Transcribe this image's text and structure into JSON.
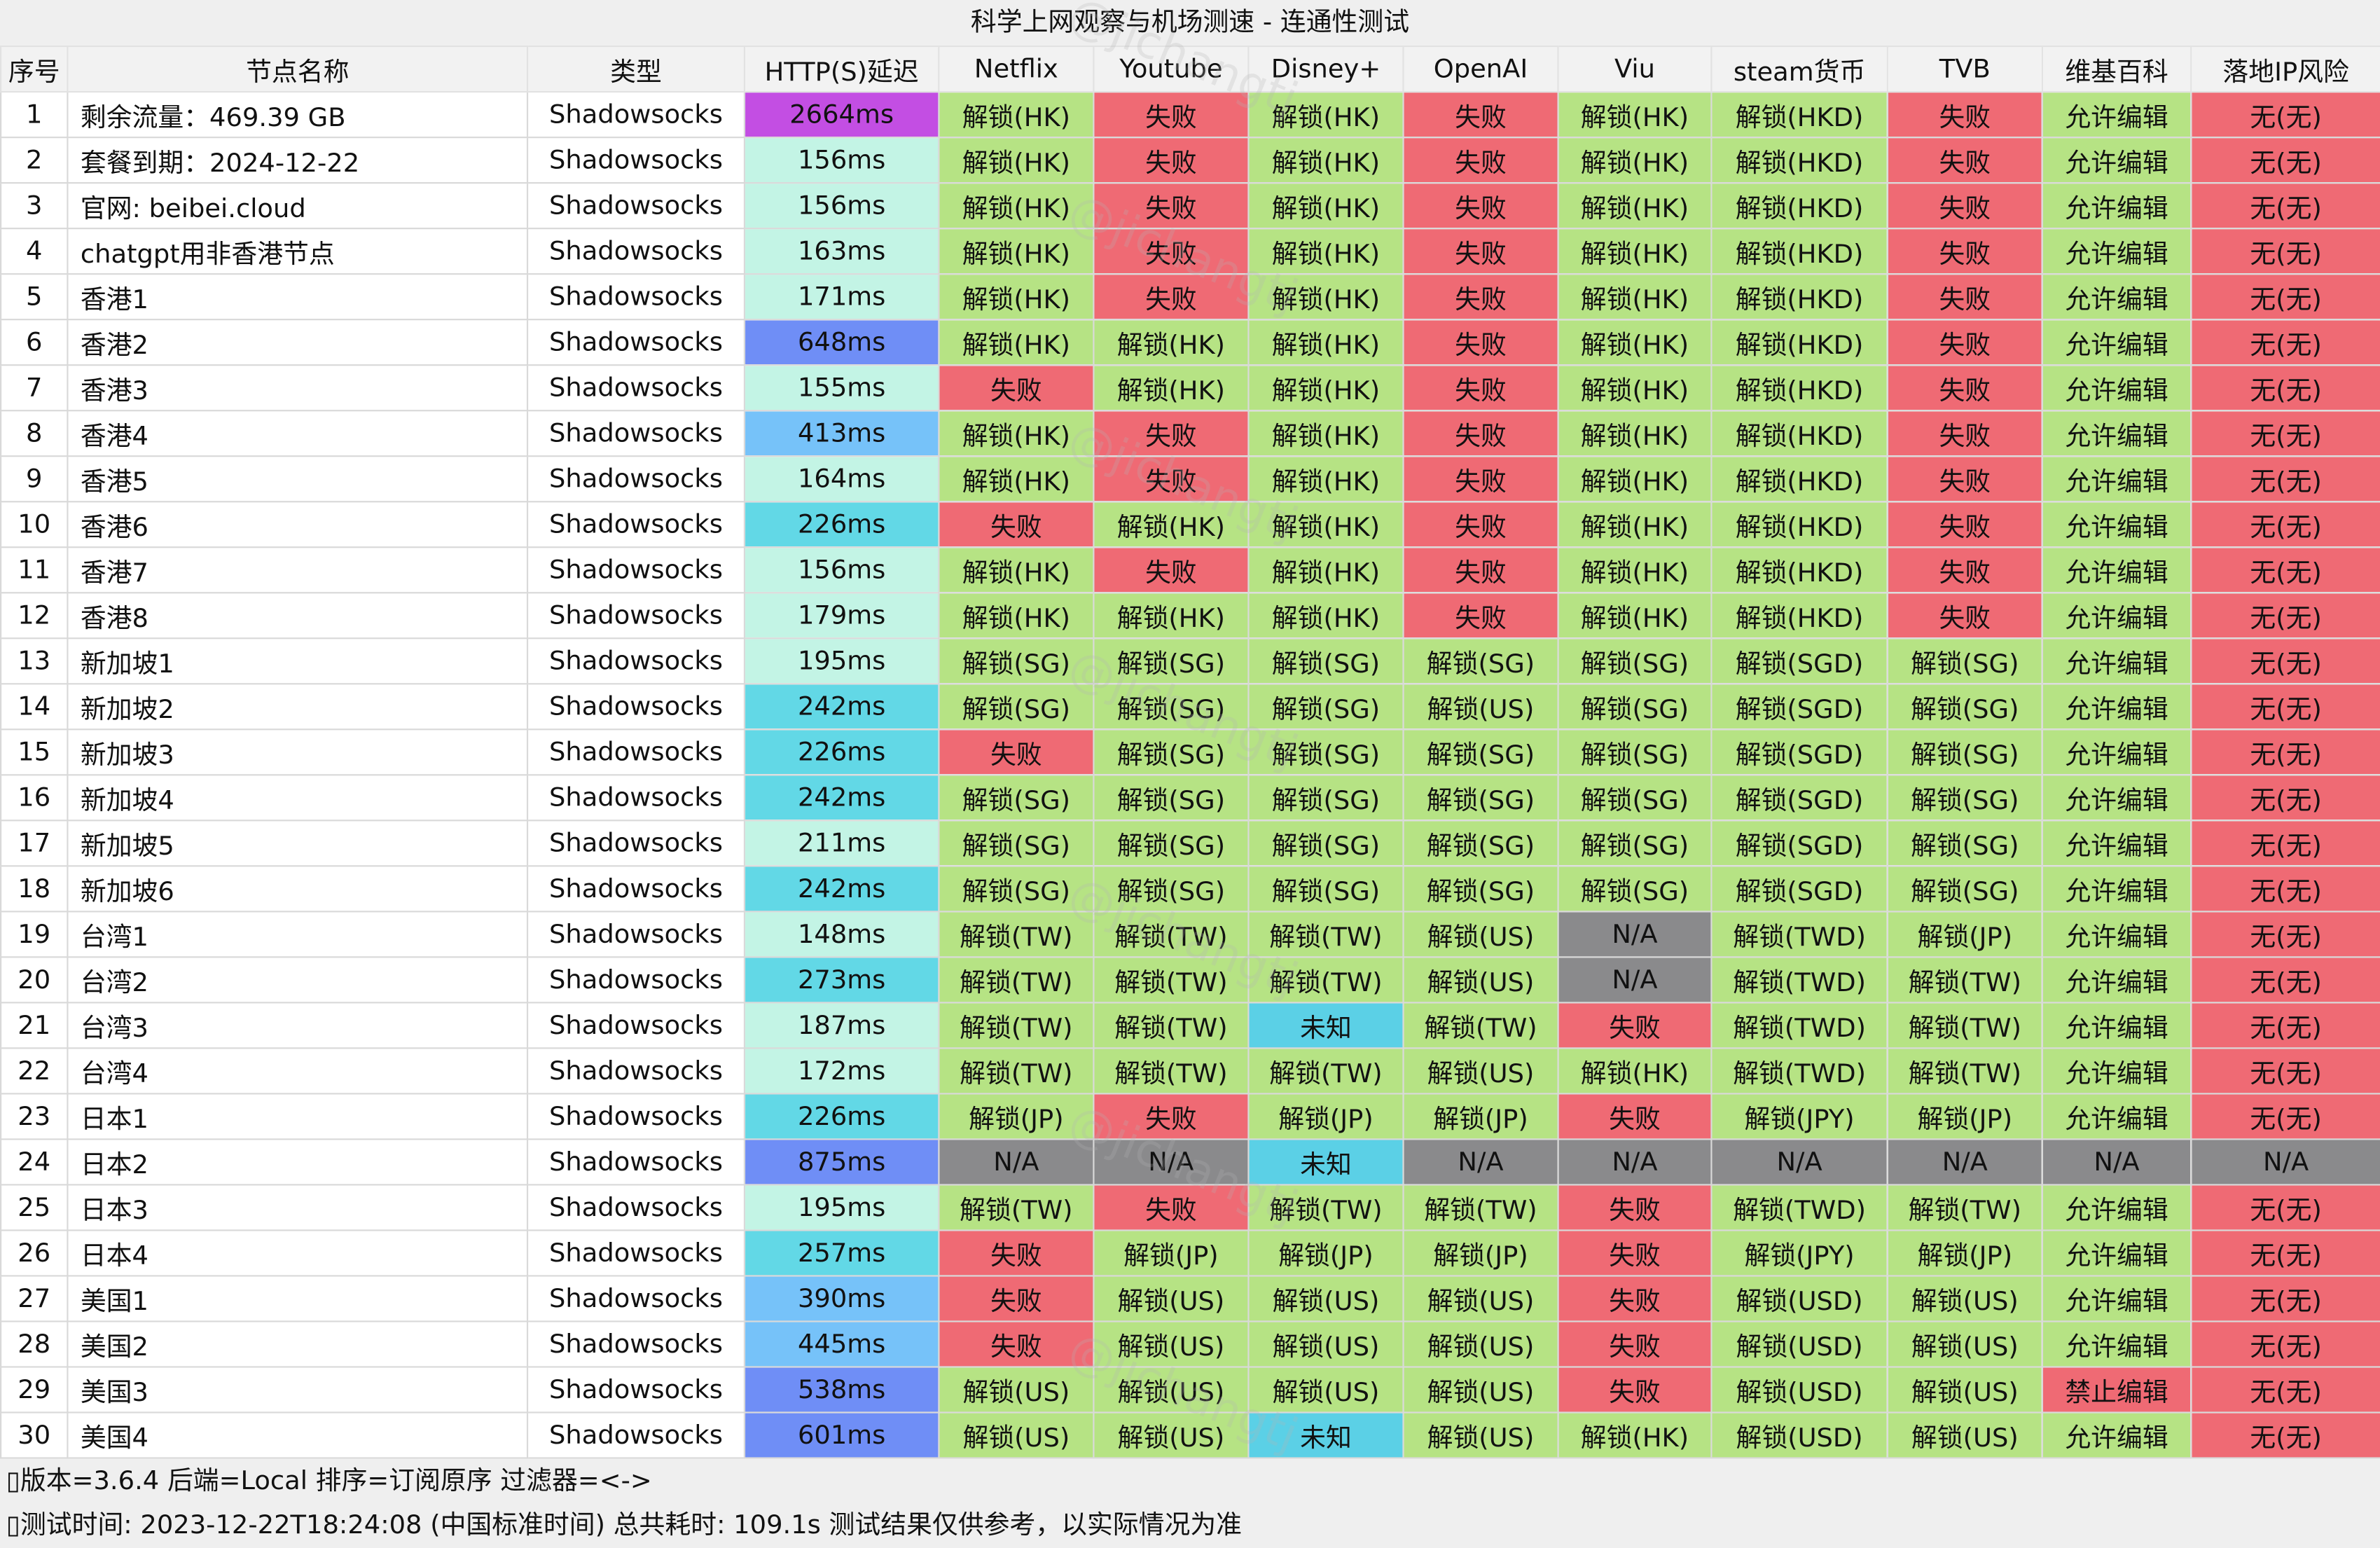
{
  "title": "科学上网观察与机场测速 - 连通性测试",
  "watermark": "@jichangtj",
  "columns": [
    "序号",
    "节点名称",
    "类型",
    "HTTP(S)延迟",
    "Netflix",
    "Youtube",
    "Disney+",
    "OpenAI",
    "Viu",
    "steam货币",
    "TVB",
    "维基百科",
    "落地IP风险"
  ],
  "colors": {
    "ok": "#b6e384",
    "fail": "#ef6a74",
    "na": "#8a8a8c",
    "unknown": "#5bd0e6"
  },
  "latency_colors": {
    "2664ms": "#c34ee3",
    "648ms": "#6f8ef6",
    "875ms": "#6f8ef6",
    "538ms": "#6f8ef6",
    "601ms": "#6f8ef6",
    "413ms": "#76c2f9",
    "390ms": "#76c2f9",
    "445ms": "#76c2f9",
    "226ms": "#62d8e6",
    "242ms": "#62d8e6",
    "273ms": "#62d8e6",
    "257ms": "#62d8e6",
    "default": "#c3f4e5"
  },
  "rows": [
    {
      "idx": "1",
      "name": "剩余流量：469.39 GB",
      "type": "Shadowsocks",
      "latency": "2664ms",
      "cells": [
        "解锁(HK)",
        "失败",
        "解锁(HK)",
        "失败",
        "解锁(HK)",
        "解锁(HKD)",
        "失败",
        "允许编辑",
        "无(无)"
      ]
    },
    {
      "idx": "2",
      "name": "套餐到期：2024-12-22",
      "type": "Shadowsocks",
      "latency": "156ms",
      "cells": [
        "解锁(HK)",
        "失败",
        "解锁(HK)",
        "失败",
        "解锁(HK)",
        "解锁(HKD)",
        "失败",
        "允许编辑",
        "无(无)"
      ]
    },
    {
      "idx": "3",
      "name": "官网: beibei.cloud",
      "type": "Shadowsocks",
      "latency": "156ms",
      "cells": [
        "解锁(HK)",
        "失败",
        "解锁(HK)",
        "失败",
        "解锁(HK)",
        "解锁(HKD)",
        "失败",
        "允许编辑",
        "无(无)"
      ]
    },
    {
      "idx": "4",
      "name": "chatgpt用非香港节点",
      "type": "Shadowsocks",
      "latency": "163ms",
      "cells": [
        "解锁(HK)",
        "失败",
        "解锁(HK)",
        "失败",
        "解锁(HK)",
        "解锁(HKD)",
        "失败",
        "允许编辑",
        "无(无)"
      ]
    },
    {
      "idx": "5",
      "name": "香港1",
      "type": "Shadowsocks",
      "latency": "171ms",
      "cells": [
        "解锁(HK)",
        "失败",
        "解锁(HK)",
        "失败",
        "解锁(HK)",
        "解锁(HKD)",
        "失败",
        "允许编辑",
        "无(无)"
      ]
    },
    {
      "idx": "6",
      "name": "香港2",
      "type": "Shadowsocks",
      "latency": "648ms",
      "cells": [
        "解锁(HK)",
        "解锁(HK)",
        "解锁(HK)",
        "失败",
        "解锁(HK)",
        "解锁(HKD)",
        "失败",
        "允许编辑",
        "无(无)"
      ]
    },
    {
      "idx": "7",
      "name": "香港3",
      "type": "Shadowsocks",
      "latency": "155ms",
      "cells": [
        "失败",
        "解锁(HK)",
        "解锁(HK)",
        "失败",
        "解锁(HK)",
        "解锁(HKD)",
        "失败",
        "允许编辑",
        "无(无)"
      ]
    },
    {
      "idx": "8",
      "name": "香港4",
      "type": "Shadowsocks",
      "latency": "413ms",
      "cells": [
        "解锁(HK)",
        "失败",
        "解锁(HK)",
        "失败",
        "解锁(HK)",
        "解锁(HKD)",
        "失败",
        "允许编辑",
        "无(无)"
      ]
    },
    {
      "idx": "9",
      "name": "香港5",
      "type": "Shadowsocks",
      "latency": "164ms",
      "cells": [
        "解锁(HK)",
        "失败",
        "解锁(HK)",
        "失败",
        "解锁(HK)",
        "解锁(HKD)",
        "失败",
        "允许编辑",
        "无(无)"
      ]
    },
    {
      "idx": "10",
      "name": "香港6",
      "type": "Shadowsocks",
      "latency": "226ms",
      "cells": [
        "失败",
        "解锁(HK)",
        "解锁(HK)",
        "失败",
        "解锁(HK)",
        "解锁(HKD)",
        "失败",
        "允许编辑",
        "无(无)"
      ]
    },
    {
      "idx": "11",
      "name": "香港7",
      "type": "Shadowsocks",
      "latency": "156ms",
      "cells": [
        "解锁(HK)",
        "失败",
        "解锁(HK)",
        "失败",
        "解锁(HK)",
        "解锁(HKD)",
        "失败",
        "允许编辑",
        "无(无)"
      ]
    },
    {
      "idx": "12",
      "name": "香港8",
      "type": "Shadowsocks",
      "latency": "179ms",
      "cells": [
        "解锁(HK)",
        "解锁(HK)",
        "解锁(HK)",
        "失败",
        "解锁(HK)",
        "解锁(HKD)",
        "失败",
        "允许编辑",
        "无(无)"
      ]
    },
    {
      "idx": "13",
      "name": "新加坡1",
      "type": "Shadowsocks",
      "latency": "195ms",
      "cells": [
        "解锁(SG)",
        "解锁(SG)",
        "解锁(SG)",
        "解锁(SG)",
        "解锁(SG)",
        "解锁(SGD)",
        "解锁(SG)",
        "允许编辑",
        "无(无)"
      ]
    },
    {
      "idx": "14",
      "name": "新加坡2",
      "type": "Shadowsocks",
      "latency": "242ms",
      "cells": [
        "解锁(SG)",
        "解锁(SG)",
        "解锁(SG)",
        "解锁(US)",
        "解锁(SG)",
        "解锁(SGD)",
        "解锁(SG)",
        "允许编辑",
        "无(无)"
      ]
    },
    {
      "idx": "15",
      "name": "新加坡3",
      "type": "Shadowsocks",
      "latency": "226ms",
      "cells": [
        "失败",
        "解锁(SG)",
        "解锁(SG)",
        "解锁(SG)",
        "解锁(SG)",
        "解锁(SGD)",
        "解锁(SG)",
        "允许编辑",
        "无(无)"
      ]
    },
    {
      "idx": "16",
      "name": "新加坡4",
      "type": "Shadowsocks",
      "latency": "242ms",
      "cells": [
        "解锁(SG)",
        "解锁(SG)",
        "解锁(SG)",
        "解锁(SG)",
        "解锁(SG)",
        "解锁(SGD)",
        "解锁(SG)",
        "允许编辑",
        "无(无)"
      ]
    },
    {
      "idx": "17",
      "name": "新加坡5",
      "type": "Shadowsocks",
      "latency": "211ms",
      "cells": [
        "解锁(SG)",
        "解锁(SG)",
        "解锁(SG)",
        "解锁(SG)",
        "解锁(SG)",
        "解锁(SGD)",
        "解锁(SG)",
        "允许编辑",
        "无(无)"
      ]
    },
    {
      "idx": "18",
      "name": "新加坡6",
      "type": "Shadowsocks",
      "latency": "242ms",
      "cells": [
        "解锁(SG)",
        "解锁(SG)",
        "解锁(SG)",
        "解锁(SG)",
        "解锁(SG)",
        "解锁(SGD)",
        "解锁(SG)",
        "允许编辑",
        "无(无)"
      ]
    },
    {
      "idx": "19",
      "name": "台湾1",
      "type": "Shadowsocks",
      "latency": "148ms",
      "cells": [
        "解锁(TW)",
        "解锁(TW)",
        "解锁(TW)",
        "解锁(US)",
        "N/A",
        "解锁(TWD)",
        "解锁(JP)",
        "允许编辑",
        "无(无)"
      ]
    },
    {
      "idx": "20",
      "name": "台湾2",
      "type": "Shadowsocks",
      "latency": "273ms",
      "cells": [
        "解锁(TW)",
        "解锁(TW)",
        "解锁(TW)",
        "解锁(US)",
        "N/A",
        "解锁(TWD)",
        "解锁(TW)",
        "允许编辑",
        "无(无)"
      ]
    },
    {
      "idx": "21",
      "name": "台湾3",
      "type": "Shadowsocks",
      "latency": "187ms",
      "cells": [
        "解锁(TW)",
        "解锁(TW)",
        "未知",
        "解锁(TW)",
        "失败",
        "解锁(TWD)",
        "解锁(TW)",
        "允许编辑",
        "无(无)"
      ]
    },
    {
      "idx": "22",
      "name": "台湾4",
      "type": "Shadowsocks",
      "latency": "172ms",
      "cells": [
        "解锁(TW)",
        "解锁(TW)",
        "解锁(TW)",
        "解锁(US)",
        "解锁(HK)",
        "解锁(TWD)",
        "解锁(TW)",
        "允许编辑",
        "无(无)"
      ]
    },
    {
      "idx": "23",
      "name": "日本1",
      "type": "Shadowsocks",
      "latency": "226ms",
      "cells": [
        "解锁(JP)",
        "失败",
        "解锁(JP)",
        "解锁(JP)",
        "失败",
        "解锁(JPY)",
        "解锁(JP)",
        "允许编辑",
        "无(无)"
      ]
    },
    {
      "idx": "24",
      "name": "日本2",
      "type": "Shadowsocks",
      "latency": "875ms",
      "cells": [
        "N/A",
        "N/A",
        "未知",
        "N/A",
        "N/A",
        "N/A",
        "N/A",
        "N/A",
        "N/A"
      ]
    },
    {
      "idx": "25",
      "name": "日本3",
      "type": "Shadowsocks",
      "latency": "195ms",
      "cells": [
        "解锁(TW)",
        "失败",
        "解锁(TW)",
        "解锁(TW)",
        "失败",
        "解锁(TWD)",
        "解锁(TW)",
        "允许编辑",
        "无(无)"
      ]
    },
    {
      "idx": "26",
      "name": "日本4",
      "type": "Shadowsocks",
      "latency": "257ms",
      "cells": [
        "失败",
        "解锁(JP)",
        "解锁(JP)",
        "解锁(JP)",
        "失败",
        "解锁(JPY)",
        "解锁(JP)",
        "允许编辑",
        "无(无)"
      ]
    },
    {
      "idx": "27",
      "name": "美国1",
      "type": "Shadowsocks",
      "latency": "390ms",
      "cells": [
        "失败",
        "解锁(US)",
        "解锁(US)",
        "解锁(US)",
        "失败",
        "解锁(USD)",
        "解锁(US)",
        "允许编辑",
        "无(无)"
      ]
    },
    {
      "idx": "28",
      "name": "美国2",
      "type": "Shadowsocks",
      "latency": "445ms",
      "cells": [
        "失败",
        "解锁(US)",
        "解锁(US)",
        "解锁(US)",
        "失败",
        "解锁(USD)",
        "解锁(US)",
        "允许编辑",
        "无(无)"
      ]
    },
    {
      "idx": "29",
      "name": "美国3",
      "type": "Shadowsocks",
      "latency": "538ms",
      "cells": [
        "解锁(US)",
        "解锁(US)",
        "解锁(US)",
        "解锁(US)",
        "失败",
        "解锁(USD)",
        "解锁(US)",
        "禁止编辑",
        "无(无)"
      ]
    },
    {
      "idx": "30",
      "name": "美国4",
      "type": "Shadowsocks",
      "latency": "601ms",
      "cells": [
        "解锁(US)",
        "解锁(US)",
        "未知",
        "解锁(US)",
        "解锁(HK)",
        "解锁(USD)",
        "解锁(US)",
        "允许编辑",
        "无(无)"
      ]
    }
  ],
  "footer": {
    "line1": "▯版本=3.6.4  后端=Local  排序=订阅原序  过滤器=<->",
    "line2": "▯测试时间: 2023-12-22T18:24:08 (中国标准时间) 总共耗时: 109.1s 测试结果仅供参考，以实际情况为准"
  }
}
